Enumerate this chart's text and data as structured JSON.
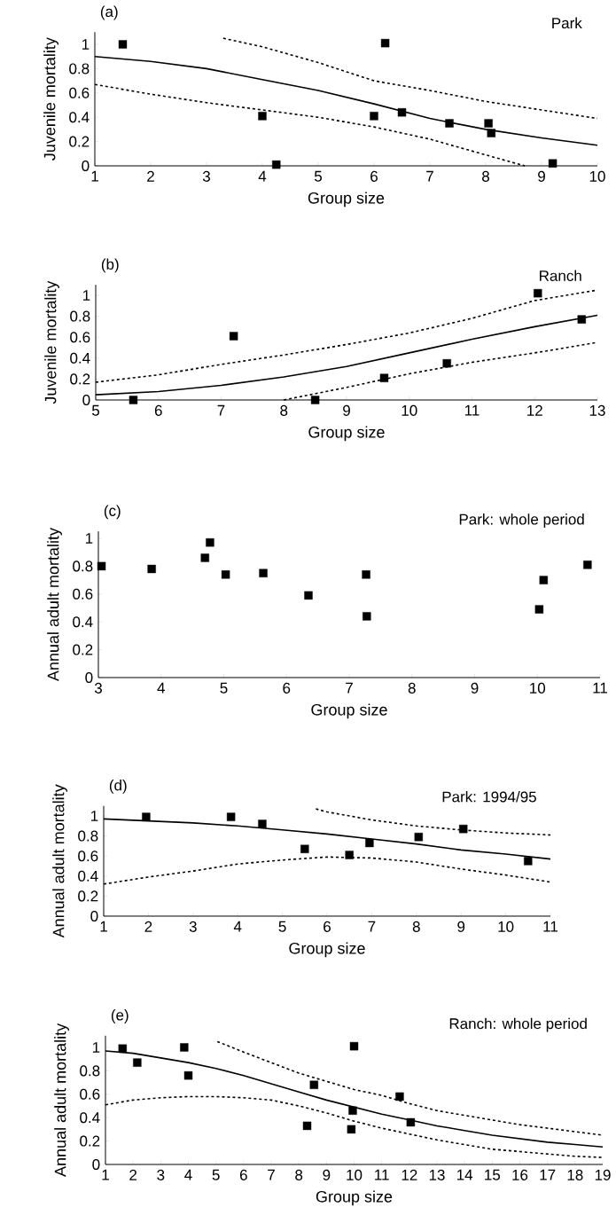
{
  "chart_data": [
    {
      "type": "scatter",
      "title": "(a)",
      "annotations": [
        "Park"
      ],
      "xlabel": "Group size",
      "ylabel": "Juvenile mortality",
      "xlim": [
        1,
        10
      ],
      "ylim": [
        0,
        1.1
      ],
      "xticks": [
        1,
        2,
        3,
        4,
        5,
        6,
        7,
        8,
        9,
        10
      ],
      "yticks": [
        0,
        0.2,
        0.4,
        0.6,
        0.8,
        1
      ],
      "series": [
        {
          "type": "scatter",
          "marker": "square",
          "color": "#000000",
          "x": [
            1.5,
            4.0,
            4.25,
            6.0,
            6.2,
            6.5,
            7.35,
            8.05,
            8.1,
            9.2
          ],
          "values": [
            1.0,
            0.41,
            0.01,
            0.41,
            1.01,
            0.44,
            0.35,
            0.35,
            0.27,
            0.02
          ]
        },
        {
          "type": "line",
          "line_style": "solid",
          "color": "#000000",
          "x": [
            1,
            2,
            3,
            4,
            5,
            6,
            7,
            8,
            9,
            10
          ],
          "values": [
            0.9,
            0.86,
            0.8,
            0.71,
            0.62,
            0.51,
            0.39,
            0.3,
            0.23,
            0.17
          ]
        },
        {
          "type": "line",
          "line_style": "dashed",
          "color": "#000000",
          "x": [
            3.3,
            4,
            5,
            6,
            7,
            8,
            9,
            10
          ],
          "values": [
            1.05,
            0.98,
            0.85,
            0.7,
            0.62,
            0.53,
            0.46,
            0.39
          ]
        },
        {
          "type": "line",
          "line_style": "dashed",
          "color": "#000000",
          "x": [
            1,
            2,
            3,
            4,
            5,
            6,
            7,
            8,
            8.7
          ],
          "values": [
            0.67,
            0.59,
            0.52,
            0.46,
            0.4,
            0.32,
            0.22,
            0.09,
            0.0
          ]
        }
      ]
    },
    {
      "type": "scatter",
      "title": "(b)",
      "annotations": [
        "Ranch"
      ],
      "xlabel": "Group size",
      "ylabel": "Juvenile mortality",
      "xlim": [
        5,
        13
      ],
      "ylim": [
        0,
        1.1
      ],
      "xticks": [
        5,
        6,
        7,
        8,
        9,
        10,
        11,
        12,
        13
      ],
      "yticks": [
        0,
        0.2,
        0.4,
        0.6,
        0.8,
        1
      ],
      "series": [
        {
          "type": "scatter",
          "marker": "square",
          "color": "#000000",
          "x": [
            5.6,
            7.2,
            8.5,
            9.6,
            10.6,
            12.05,
            12.75
          ],
          "values": [
            0.0,
            0.61,
            0.0,
            0.21,
            0.35,
            1.02,
            0.77
          ]
        },
        {
          "type": "line",
          "line_style": "solid",
          "color": "#000000",
          "x": [
            5,
            6,
            7,
            8,
            9,
            10,
            11,
            12,
            13
          ],
          "values": [
            0.05,
            0.08,
            0.14,
            0.22,
            0.32,
            0.45,
            0.58,
            0.7,
            0.81
          ]
        },
        {
          "type": "line",
          "line_style": "dashed",
          "color": "#000000",
          "x": [
            5,
            6,
            7,
            8,
            9,
            10,
            11,
            12,
            13
          ],
          "values": [
            0.17,
            0.24,
            0.34,
            0.43,
            0.53,
            0.64,
            0.78,
            0.95,
            1.05
          ]
        },
        {
          "type": "line",
          "line_style": "dashed",
          "color": "#000000",
          "x": [
            8,
            9,
            10,
            11,
            12,
            13
          ],
          "values": [
            0.0,
            0.12,
            0.25,
            0.36,
            0.45,
            0.55
          ]
        }
      ]
    },
    {
      "type": "scatter",
      "title": "(c)",
      "annotations": [
        "Park: whole period"
      ],
      "xlabel": "Group size",
      "ylabel": "Annual adult mortality",
      "xlim": [
        3,
        11
      ],
      "ylim": [
        0,
        1.05
      ],
      "xticks": [
        3,
        4,
        5,
        6,
        7,
        8,
        9,
        10,
        11
      ],
      "yticks": [
        0,
        0.2,
        0.4,
        0.6,
        0.8,
        1
      ],
      "series": [
        {
          "type": "scatter",
          "marker": "square",
          "color": "#000000",
          "x": [
            3.05,
            3.85,
            4.7,
            4.78,
            5.03,
            5.63,
            6.35,
            7.27,
            7.28,
            10.03,
            10.1,
            10.8
          ],
          "values": [
            0.8,
            0.78,
            0.86,
            0.97,
            0.74,
            0.75,
            0.59,
            0.74,
            0.44,
            0.49,
            0.7,
            0.81
          ]
        }
      ]
    },
    {
      "type": "scatter",
      "title": "(d)",
      "annotations": [
        "Park: 1994/95"
      ],
      "xlabel": "Group size",
      "ylabel": "Annual adult mortality",
      "xlim": [
        1,
        11
      ],
      "ylim": [
        0,
        1.1
      ],
      "xticks": [
        1,
        2,
        3,
        4,
        5,
        6,
        7,
        8,
        9,
        10,
        11
      ],
      "yticks": [
        0,
        0.2,
        0.4,
        0.6,
        0.8,
        1
      ],
      "series": [
        {
          "type": "scatter",
          "marker": "square",
          "color": "#000000",
          "x": [
            1.95,
            3.85,
            4.55,
            5.5,
            6.5,
            6.95,
            8.05,
            9.05,
            10.5
          ],
          "values": [
            0.99,
            0.99,
            0.92,
            0.67,
            0.61,
            0.73,
            0.79,
            0.87,
            0.55
          ]
        },
        {
          "type": "line",
          "line_style": "solid",
          "color": "#000000",
          "x": [
            1,
            2,
            3,
            4,
            5,
            6,
            7,
            8,
            9,
            10,
            11
          ],
          "values": [
            0.97,
            0.95,
            0.93,
            0.9,
            0.86,
            0.82,
            0.77,
            0.72,
            0.66,
            0.62,
            0.57
          ]
        },
        {
          "type": "line",
          "line_style": "dashed",
          "color": "#000000",
          "x": [
            5.75,
            6,
            7,
            8,
            9,
            10,
            11
          ],
          "values": [
            1.07,
            1.04,
            0.96,
            0.9,
            0.86,
            0.83,
            0.81
          ]
        },
        {
          "type": "line",
          "line_style": "dashed",
          "color": "#000000",
          "x": [
            1,
            2,
            3,
            4,
            5,
            6,
            7,
            8,
            9,
            10,
            11
          ],
          "values": [
            0.32,
            0.39,
            0.45,
            0.52,
            0.56,
            0.59,
            0.58,
            0.54,
            0.47,
            0.41,
            0.34
          ]
        }
      ]
    },
    {
      "type": "scatter",
      "title": "(e)",
      "annotations": [
        "Ranch: whole period"
      ],
      "xlabel": "Group size",
      "ylabel": "Annual adult mortality",
      "xlim": [
        1,
        19
      ],
      "ylim": [
        0,
        1.1
      ],
      "xticks": [
        1,
        2,
        3,
        4,
        5,
        6,
        7,
        8,
        9,
        10,
        11,
        12,
        13,
        14,
        15,
        16,
        17,
        18,
        19
      ],
      "yticks": [
        0,
        0.2,
        0.4,
        0.6,
        0.8,
        1
      ],
      "series": [
        {
          "type": "scatter",
          "marker": "square",
          "color": "#000000",
          "x": [
            1.62,
            2.15,
            3.85,
            4.0,
            8.3,
            8.55,
            9.9,
            9.95,
            10.0,
            11.65,
            12.05
          ],
          "values": [
            0.99,
            0.87,
            1.0,
            0.76,
            0.33,
            0.68,
            0.3,
            0.46,
            1.01,
            0.58,
            0.36
          ]
        },
        {
          "type": "line",
          "line_style": "solid",
          "color": "#000000",
          "x": [
            1,
            2,
            3,
            4,
            5,
            6,
            7,
            8,
            9,
            10,
            11,
            12,
            13,
            14,
            15,
            16,
            17,
            18,
            19
          ],
          "values": [
            0.97,
            0.95,
            0.91,
            0.87,
            0.82,
            0.76,
            0.69,
            0.62,
            0.55,
            0.49,
            0.43,
            0.38,
            0.33,
            0.29,
            0.25,
            0.22,
            0.19,
            0.17,
            0.15
          ]
        },
        {
          "type": "line",
          "line_style": "dashed",
          "color": "#000000",
          "x": [
            5.05,
            6,
            7,
            8,
            9,
            10,
            11,
            12,
            13,
            14,
            15,
            16,
            17,
            18,
            19
          ],
          "values": [
            1.05,
            0.96,
            0.87,
            0.78,
            0.71,
            0.64,
            0.59,
            0.52,
            0.46,
            0.42,
            0.38,
            0.34,
            0.31,
            0.28,
            0.25
          ]
        },
        {
          "type": "line",
          "line_style": "dashed",
          "color": "#000000",
          "x": [
            1,
            2,
            3,
            4,
            5,
            6,
            7,
            8,
            9,
            10,
            11,
            12,
            13,
            14,
            15,
            16,
            17,
            18,
            19
          ],
          "values": [
            0.51,
            0.55,
            0.57,
            0.58,
            0.58,
            0.57,
            0.55,
            0.5,
            0.44,
            0.37,
            0.31,
            0.26,
            0.21,
            0.17,
            0.13,
            0.11,
            0.09,
            0.07,
            0.06
          ]
        }
      ]
    }
  ]
}
